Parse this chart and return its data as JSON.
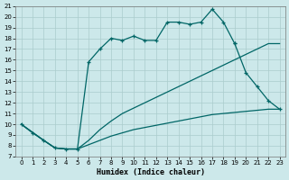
{
  "xlabel": "Humidex (Indice chaleur)",
  "bg_color": "#cce8ea",
  "grid_color": "#aacccc",
  "line_color": "#006666",
  "xlim": [
    -0.5,
    23.5
  ],
  "ylim": [
    7,
    21
  ],
  "yticks": [
    7,
    8,
    9,
    10,
    11,
    12,
    13,
    14,
    15,
    16,
    17,
    18,
    19,
    20,
    21
  ],
  "xticks": [
    0,
    1,
    2,
    3,
    4,
    5,
    6,
    7,
    8,
    9,
    10,
    11,
    12,
    13,
    14,
    15,
    16,
    17,
    18,
    19,
    20,
    21,
    22,
    23
  ],
  "line1_x": [
    0,
    1,
    2,
    3,
    4,
    5,
    6,
    7,
    8,
    9,
    10,
    11,
    12,
    13,
    14,
    15,
    16,
    17,
    18,
    19
  ],
  "line1_y": [
    10.0,
    9.2,
    8.5,
    7.8,
    7.7,
    7.7,
    15.8,
    17.0,
    18.0,
    17.8,
    18.2,
    17.8,
    17.8,
    19.5,
    19.5,
    19.3,
    19.5,
    20.7,
    19.5,
    17.5
  ],
  "line2_x": [
    19,
    20,
    21,
    22,
    23
  ],
  "line2_y": [
    17.5,
    14.8,
    13.5,
    12.2,
    11.4
  ],
  "line3_x": [
    0,
    2,
    3,
    4,
    5,
    6,
    7,
    8,
    9,
    10,
    11,
    12,
    13,
    14,
    15,
    16,
    17,
    18,
    19,
    20,
    21,
    22,
    23
  ],
  "line3_y": [
    10.0,
    8.5,
    7.8,
    7.7,
    7.7,
    8.5,
    9.5,
    10.3,
    11.0,
    11.5,
    12.0,
    12.5,
    13.0,
    13.5,
    14.0,
    14.5,
    15.0,
    15.5,
    16.0,
    16.5,
    17.0,
    17.5,
    17.5
  ],
  "line4_x": [
    0,
    2,
    3,
    4,
    5,
    6,
    7,
    8,
    9,
    10,
    11,
    12,
    13,
    14,
    15,
    16,
    17,
    18,
    19,
    20,
    21,
    22,
    23
  ],
  "line4_y": [
    10.0,
    8.5,
    7.8,
    7.7,
    7.7,
    8.1,
    8.5,
    8.9,
    9.2,
    9.5,
    9.7,
    9.9,
    10.1,
    10.3,
    10.5,
    10.7,
    10.9,
    11.0,
    11.1,
    11.2,
    11.3,
    11.4,
    11.4
  ]
}
